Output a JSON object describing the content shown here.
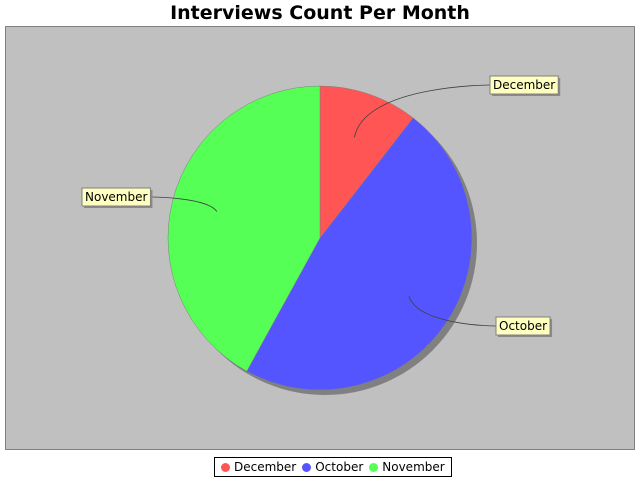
{
  "chart_data": {
    "type": "pie",
    "title": "Interviews Count Per Month",
    "slices": [
      {
        "label": "December",
        "value": 10.5,
        "color": "#ff5555"
      },
      {
        "label": "October",
        "value": 47.5,
        "color": "#5555ff"
      },
      {
        "label": "November",
        "value": 42.0,
        "color": "#55ff55"
      }
    ],
    "start_angle_deg": 90,
    "direction": "clockwise",
    "plot_background": "#c0c0c0",
    "label_background": "#ffffc0",
    "legend": {
      "position": "bottom",
      "entries": [
        "December",
        "October",
        "November"
      ]
    }
  }
}
